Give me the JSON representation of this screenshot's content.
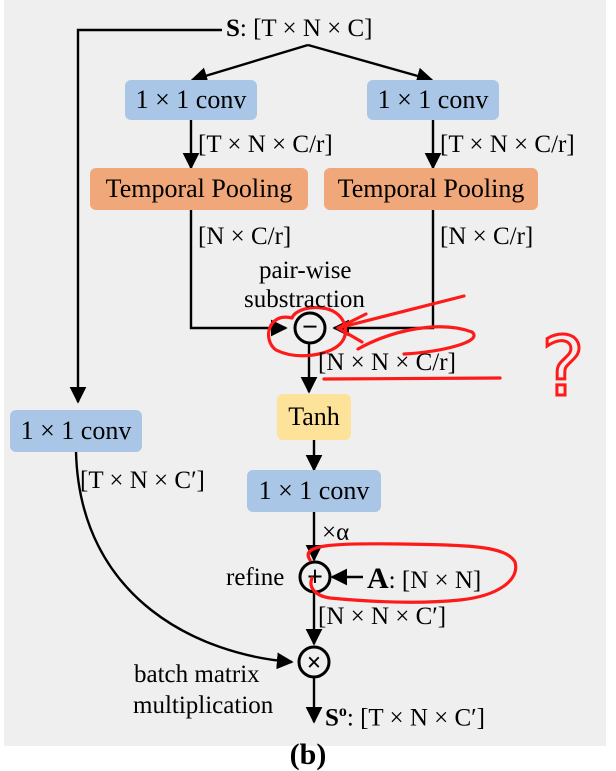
{
  "input": {
    "symbol": "S",
    "shape": ": [T × N × C]"
  },
  "conv_left": "1 × 1 conv",
  "conv_right": "1 × 1 conv",
  "shape_after_conv_left": "[T × N × C/r]",
  "shape_after_conv_right": "[T × N × C/r]",
  "pool_left": "Temporal Pooling",
  "pool_right": "Temporal Pooling",
  "shape_after_pool_left": "[N × C/r]",
  "shape_after_pool_right": "[N × C/r]",
  "pairwise_label": "pair-wise",
  "subtraction_label": "substraction",
  "minus_symbol": "−",
  "shape_after_sub": "[N × N × C/r]",
  "tanh": "Tanh",
  "conv_mid": "1 × 1 conv",
  "alpha": "×α",
  "refine_label": "refine",
  "plus_symbol": "+",
  "adj": {
    "symbol": "A",
    "shape": ": [N × N]"
  },
  "shape_after_refine": "[N × N × C′]",
  "conv_side": "1 × 1 conv",
  "shape_side": "[T × N × C′]",
  "times_symbol": "×",
  "bmm_label_1": "batch matrix",
  "bmm_label_2": "multiplication",
  "output": {
    "symbol": "S",
    "sup": "o",
    "shape": ": [T × N × C′]"
  },
  "annotation": {
    "question": "?"
  },
  "caption": "(b)",
  "colors": {
    "conv": "#a9c6e6",
    "pool": "#f0a77a",
    "tanh": "#fde39a",
    "annotation": "#ff1a1a"
  }
}
